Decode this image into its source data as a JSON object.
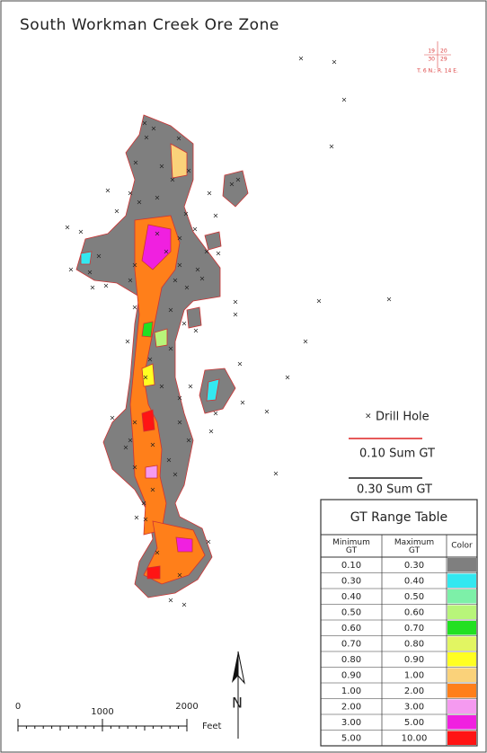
{
  "map": {
    "title": "South Workman Creek Ore Zone",
    "township": {
      "sections": [
        "19",
        "20",
        "30",
        "29"
      ],
      "label": "T. 6 N.; R. 14 E."
    },
    "legend": {
      "drill_hole": "Drill Hole",
      "line_1": {
        "label": "0.10 Sum GT",
        "color": "#d22"
      },
      "line_2": {
        "label": "0.30 Sum GT",
        "color": "#222"
      }
    },
    "table": {
      "title": "GT Range Table",
      "headers": [
        "Minimum GT",
        "Maximum GT",
        "Color"
      ],
      "rows": [
        {
          "min": "0.10",
          "max": "0.30",
          "color": "#7f7f7f"
        },
        {
          "min": "0.30",
          "max": "0.40",
          "color": "#33e8f0"
        },
        {
          "min": "0.40",
          "max": "0.50",
          "color": "#7df0a8"
        },
        {
          "min": "0.50",
          "max": "0.60",
          "color": "#b8f57a"
        },
        {
          "min": "0.60",
          "max": "0.70",
          "color": "#22e022"
        },
        {
          "min": "0.70",
          "max": "0.80",
          "color": "#e2f562"
        },
        {
          "min": "0.80",
          "max": "0.90",
          "color": "#ffff22"
        },
        {
          "min": "0.90",
          "max": "1.00",
          "color": "#fad27a"
        },
        {
          "min": "1.00",
          "max": "2.00",
          "color": "#ff7f1a"
        },
        {
          "min": "2.00",
          "max": "3.00",
          "color": "#f59af0"
        },
        {
          "min": "3.00",
          "max": "5.00",
          "color": "#f020e0"
        },
        {
          "min": "5.00",
          "max": "10.00",
          "color": "#ff1414"
        }
      ]
    },
    "scale": {
      "ticks": [
        0,
        1000,
        2000
      ],
      "unit": "Feet"
    },
    "north": "N"
  }
}
